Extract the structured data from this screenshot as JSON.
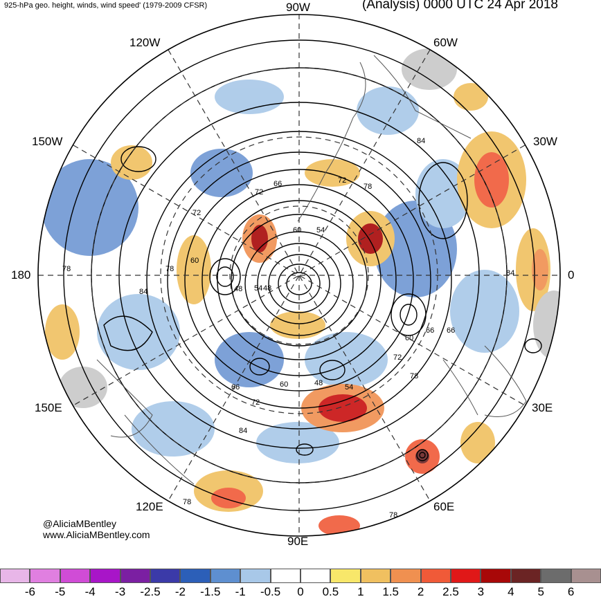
{
  "header": {
    "left": "925-hPa geo. height, winds, wind speed' (1979-2009 CFSR)",
    "right": "(Analysis) 0000 UTC 24 Apr 2018"
  },
  "map": {
    "projection": "north-polar-stereographic",
    "lon_labels": {
      "top": "90W",
      "w120": "120W",
      "e60_top": "60W",
      "w150": "150W",
      "w30": "30W",
      "left": "180",
      "right": "0",
      "e150": "150E",
      "e30": "30E",
      "e120": "120E",
      "e60": "60E",
      "bottom": "90E"
    },
    "contour_labels": [
      "84",
      "78",
      "72",
      "66",
      "60",
      "54",
      "48",
      "66",
      "72",
      "78",
      "84",
      "78",
      "84",
      "72",
      "60",
      "66",
      "72",
      "78",
      "48",
      "54",
      "60",
      "66",
      "72",
      "84",
      "78",
      "78",
      "60",
      "54",
      "48",
      "54",
      "66",
      "72",
      "78",
      "60",
      "66",
      "72",
      "84"
    ]
  },
  "credit": {
    "handle": "@AliciaMBentley",
    "site": "www.AliciaMBentley.com"
  },
  "colorbar": {
    "colors": [
      "#e8b6e8",
      "#e07fe0",
      "#d04cd6",
      "#a815c8",
      "#7b1fa2",
      "#3b3aa8",
      "#2c5fb8",
      "#5e8fd0",
      "#a8c8e8",
      "#ffffff",
      "#ffffff",
      "#f8e76a",
      "#f0c060",
      "#f09050",
      "#f05a38",
      "#e01818",
      "#a80808",
      "#6b2424",
      "#6c6c6c",
      "#a89090"
    ],
    "ticks": [
      "-6",
      "-5",
      "-4",
      "-3",
      "-2.5",
      "-2",
      "-1.5",
      "-1",
      "-0.5",
      "0",
      "0.5",
      "1",
      "1.5",
      "2",
      "2.5",
      "3",
      "4",
      "5",
      "6"
    ]
  }
}
